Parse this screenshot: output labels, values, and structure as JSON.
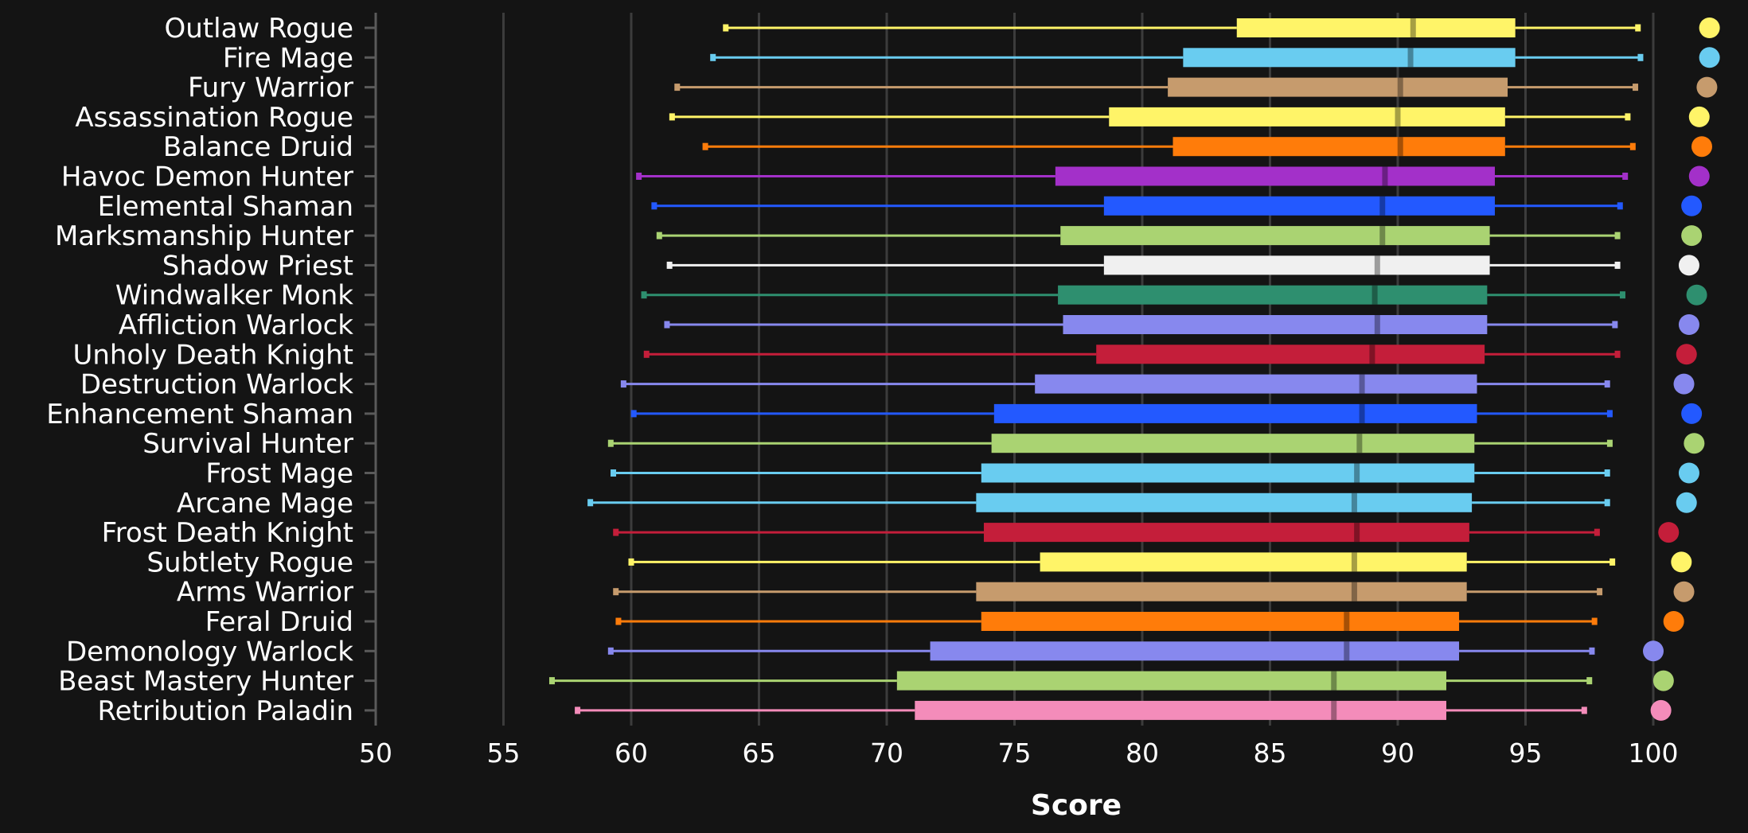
{
  "chart_data": {
    "type": "boxplot",
    "xlabel": "Score",
    "xlim": [
      50,
      102
    ],
    "xticks": [
      50,
      55,
      60,
      65,
      70,
      75,
      80,
      85,
      90,
      95,
      100
    ],
    "grid": true,
    "categories": [
      "Outlaw Rogue",
      "Fire Mage",
      "Fury Warrior",
      "Assassination Rogue",
      "Balance Druid",
      "Havoc Demon Hunter",
      "Elemental Shaman",
      "Marksmanship Hunter",
      "Shadow Priest",
      "Windwalker Monk",
      "Affliction Warlock",
      "Unholy Death Knight",
      "Destruction Warlock",
      "Enhancement Shaman",
      "Survival Hunter",
      "Frost Mage",
      "Arcane Mage",
      "Frost Death Knight",
      "Subtlety Rogue",
      "Arms Warrior",
      "Feral Druid",
      "Demonology Warlock",
      "Beast Mastery Hunter",
      "Retribution Paladin"
    ],
    "series": [
      {
        "label": "Outlaw Rogue",
        "color": "#fff468",
        "min": 63.7,
        "q1": 83.7,
        "median": 90.6,
        "q3": 94.6,
        "max": 99.4,
        "dot": 102.2
      },
      {
        "label": "Fire Mage",
        "color": "#69ccf0",
        "min": 63.2,
        "q1": 81.6,
        "median": 90.5,
        "q3": 94.6,
        "max": 99.5,
        "dot": 102.2
      },
      {
        "label": "Fury Warrior",
        "color": "#c69b6d",
        "min": 61.8,
        "q1": 81.0,
        "median": 90.1,
        "q3": 94.3,
        "max": 99.3,
        "dot": 102.1
      },
      {
        "label": "Assassination Rogue",
        "color": "#fff468",
        "min": 61.6,
        "q1": 78.7,
        "median": 90.0,
        "q3": 94.2,
        "max": 99.0,
        "dot": 101.8
      },
      {
        "label": "Balance Druid",
        "color": "#ff7c0a",
        "min": 62.9,
        "q1": 81.2,
        "median": 90.1,
        "q3": 94.2,
        "max": 99.2,
        "dot": 101.9
      },
      {
        "label": "Havoc Demon Hunter",
        "color": "#a330c9",
        "min": 60.3,
        "q1": 76.6,
        "median": 89.5,
        "q3": 93.8,
        "max": 98.9,
        "dot": 101.8
      },
      {
        "label": "Elemental Shaman",
        "color": "#2359ff",
        "min": 60.9,
        "q1": 78.5,
        "median": 89.4,
        "q3": 93.8,
        "max": 98.7,
        "dot": 101.5
      },
      {
        "label": "Marksmanship Hunter",
        "color": "#aad372",
        "min": 61.1,
        "q1": 76.8,
        "median": 89.4,
        "q3": 93.6,
        "max": 98.6,
        "dot": 101.5
      },
      {
        "label": "Shadow Priest",
        "color": "#f0f0f0",
        "min": 61.5,
        "q1": 78.5,
        "median": 89.2,
        "q3": 93.6,
        "max": 98.6,
        "dot": 101.4
      },
      {
        "label": "Windwalker Monk",
        "color": "#2e8f6f",
        "min": 60.5,
        "q1": 76.7,
        "median": 89.1,
        "q3": 93.5,
        "max": 98.8,
        "dot": 101.7
      },
      {
        "label": "Affliction Warlock",
        "color": "#8788ee",
        "min": 61.4,
        "q1": 76.9,
        "median": 89.2,
        "q3": 93.5,
        "max": 98.5,
        "dot": 101.4
      },
      {
        "label": "Unholy Death Knight",
        "color": "#c41e3a",
        "min": 60.6,
        "q1": 78.2,
        "median": 89.0,
        "q3": 93.4,
        "max": 98.6,
        "dot": 101.3
      },
      {
        "label": "Destruction Warlock",
        "color": "#8788ee",
        "min": 59.7,
        "q1": 75.8,
        "median": 88.6,
        "q3": 93.1,
        "max": 98.2,
        "dot": 101.2
      },
      {
        "label": "Enhancement Shaman",
        "color": "#2359ff",
        "min": 60.1,
        "q1": 74.2,
        "median": 88.6,
        "q3": 93.1,
        "max": 98.3,
        "dot": 101.5
      },
      {
        "label": "Survival Hunter",
        "color": "#aad372",
        "min": 59.2,
        "q1": 74.1,
        "median": 88.5,
        "q3": 93.0,
        "max": 98.3,
        "dot": 101.6
      },
      {
        "label": "Frost Mage",
        "color": "#69ccf0",
        "min": 59.3,
        "q1": 73.7,
        "median": 88.4,
        "q3": 93.0,
        "max": 98.2,
        "dot": 101.4
      },
      {
        "label": "Arcane Mage",
        "color": "#69ccf0",
        "min": 58.4,
        "q1": 73.5,
        "median": 88.3,
        "q3": 92.9,
        "max": 98.2,
        "dot": 101.3
      },
      {
        "label": "Frost Death Knight",
        "color": "#c41e3a",
        "min": 59.4,
        "q1": 73.8,
        "median": 88.4,
        "q3": 92.8,
        "max": 97.8,
        "dot": 100.6
      },
      {
        "label": "Subtlety Rogue",
        "color": "#fff468",
        "min": 60.0,
        "q1": 76.0,
        "median": 88.3,
        "q3": 92.7,
        "max": 98.4,
        "dot": 101.1
      },
      {
        "label": "Arms Warrior",
        "color": "#c69b6d",
        "min": 59.4,
        "q1": 73.5,
        "median": 88.3,
        "q3": 92.7,
        "max": 97.9,
        "dot": 101.2
      },
      {
        "label": "Feral Druid",
        "color": "#ff7c0a",
        "min": 59.5,
        "q1": 73.7,
        "median": 88.0,
        "q3": 92.4,
        "max": 97.7,
        "dot": 100.8
      },
      {
        "label": "Demonology Warlock",
        "color": "#8788ee",
        "min": 59.2,
        "q1": 71.7,
        "median": 88.0,
        "q3": 92.4,
        "max": 97.6,
        "dot": 100.0
      },
      {
        "label": "Beast Mastery Hunter",
        "color": "#aad372",
        "min": 56.9,
        "q1": 70.4,
        "median": 87.5,
        "q3": 91.9,
        "max": 97.5,
        "dot": 100.4
      },
      {
        "label": "Retribution Paladin",
        "color": "#f48cba",
        "min": 57.9,
        "q1": 71.1,
        "median": 87.5,
        "q3": 91.9,
        "max": 97.3,
        "dot": 100.3
      }
    ]
  }
}
